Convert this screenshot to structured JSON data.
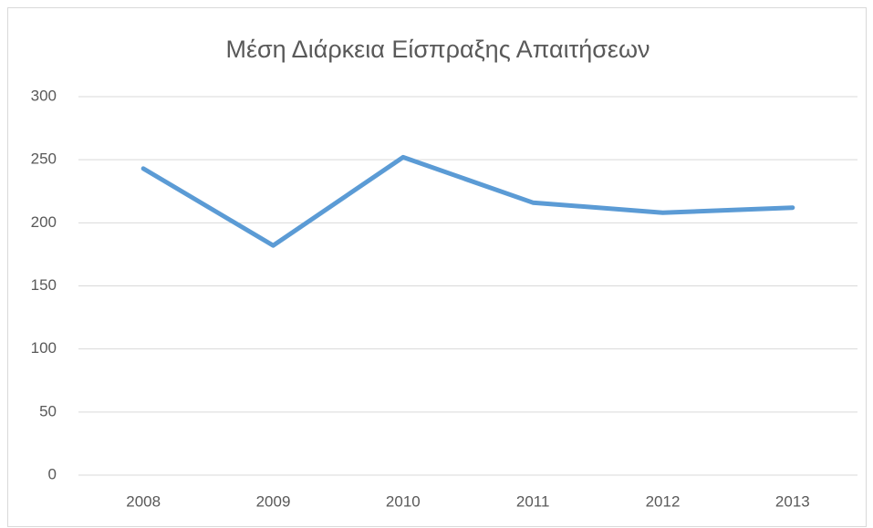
{
  "chart_data": {
    "type": "line",
    "title": "Μέση Διάρκεια Είσπραξης Απαιτήσεων",
    "categories": [
      "2008",
      "2009",
      "2010",
      "2011",
      "2012",
      "2013"
    ],
    "series": [
      {
        "name": "Μέση Διάρκεια Είσπραξης Απαιτήσεων",
        "color": "#5b9bd5",
        "values": [
          243,
          182,
          252,
          216,
          208,
          212
        ]
      }
    ],
    "ylim": [
      0,
      300
    ],
    "yticks": [
      0,
      50,
      100,
      150,
      200,
      250,
      300
    ],
    "grid": true
  }
}
